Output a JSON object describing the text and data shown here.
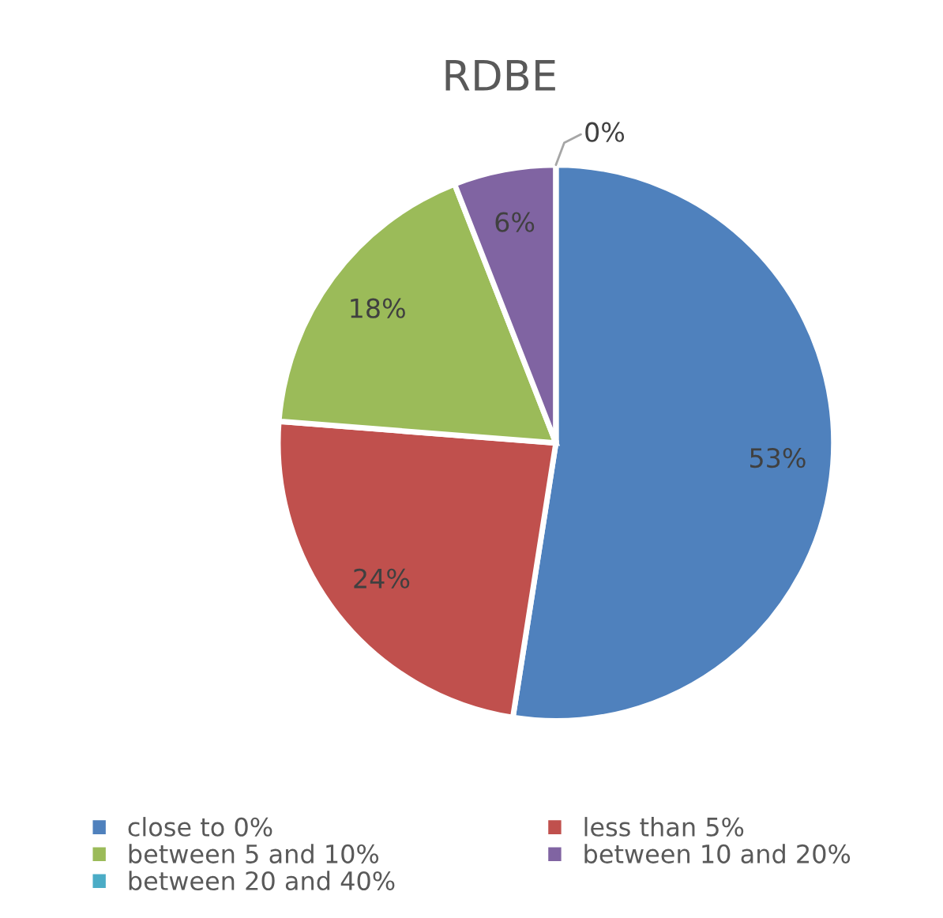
{
  "chart_data": {
    "type": "pie",
    "title": "RDBE",
    "categories": [
      "close to 0%",
      "less than 5%",
      "between 5 and 10%",
      "between 10 and 20%",
      "between 20 and 40%"
    ],
    "values": [
      53,
      24,
      18,
      6,
      0
    ],
    "colors": [
      "#4f81bd",
      "#c0504d",
      "#9bbb59",
      "#8064a2",
      "#4bacc6"
    ],
    "value_labels": [
      "53%",
      "24%",
      "18%",
      "6%",
      "0%"
    ],
    "legend": "bottom"
  }
}
